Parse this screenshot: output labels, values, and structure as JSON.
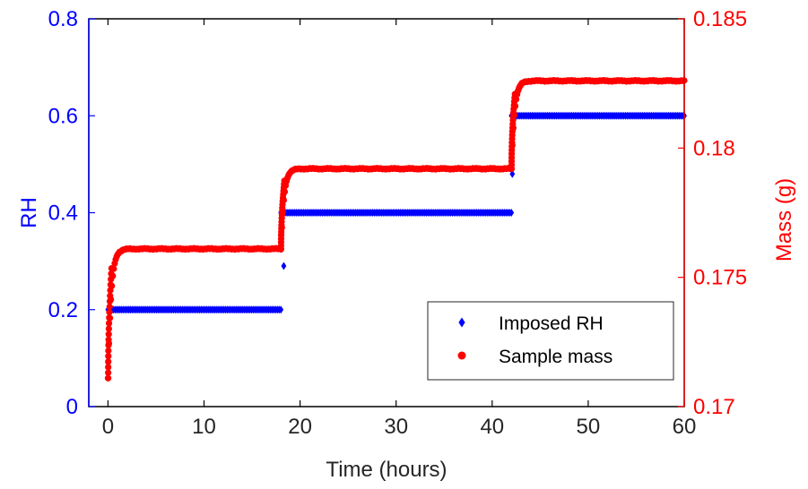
{
  "chart_data": {
    "type": "scatter",
    "x_axis": {
      "label": "Time (hours)",
      "range": [
        -2,
        60
      ],
      "ticks": [
        0,
        10,
        20,
        30,
        40,
        50,
        60
      ]
    },
    "y_axis_left": {
      "label": "RH",
      "range": [
        0,
        0.8
      ],
      "ticks": [
        "0",
        "0.2",
        "0.4",
        "0.6",
        "0.8"
      ],
      "color": "#0000ff"
    },
    "y_axis_right": {
      "label": "Mass (g)",
      "range": [
        0.17,
        0.185
      ],
      "ticks": [
        "0.17",
        "0.175",
        "0.18",
        "0.185"
      ],
      "color": "#ff0000"
    },
    "grid": false,
    "legend_position": "bottom-right",
    "series": [
      {
        "name": "Imposed RH",
        "axis": "left",
        "marker": "diamond",
        "color": "#0000ff",
        "steps": [
          {
            "x_start": 0,
            "x_end": 18,
            "value": 0.2
          },
          {
            "x_start": 18,
            "x_end": 42,
            "value": 0.4
          },
          {
            "x_start": 42,
            "x_end": 60,
            "value": 0.6
          }
        ],
        "transition_points": [
          {
            "x": 0.0,
            "y": 0.09
          },
          {
            "x": 18.3,
            "y": 0.29
          },
          {
            "x": 42.1,
            "y": 0.48
          },
          {
            "x": 42.2,
            "y": 0.61
          }
        ]
      },
      {
        "name": "Sample mass",
        "axis": "right",
        "marker": "circle",
        "color": "#ff0000",
        "stages": [
          {
            "x_start": 0,
            "x_end": 18,
            "m_start": 0.1711,
            "m_end": 0.1761
          },
          {
            "x_start": 18,
            "x_end": 42,
            "m_start": 0.1761,
            "m_end": 0.1792
          },
          {
            "x_start": 42,
            "x_end": 60,
            "m_start": 0.1792,
            "m_end": 0.1826
          }
        ]
      }
    ]
  }
}
